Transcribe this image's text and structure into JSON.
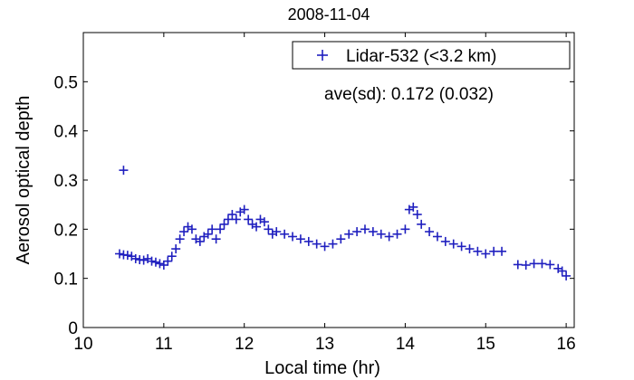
{
  "chart_data": {
    "type": "scatter",
    "title": "2008-11-04",
    "xlabel": "Local time (hr)",
    "ylabel": "Aerosol optical depth",
    "xlim": [
      10,
      16.1
    ],
    "ylim": [
      0,
      0.6
    ],
    "xticks": [
      "10",
      "11",
      "12",
      "13",
      "14",
      "15",
      "16"
    ],
    "yticks": [
      "0",
      "0.1",
      "0.2",
      "0.3",
      "0.4",
      "0.5"
    ],
    "legend_placement": "top-right",
    "marker": "+",
    "color": "#1f1fbf",
    "annotation": "ave(sd): 0.172 (0.032)",
    "series": [
      {
        "name": "Lidar-532 (<3.2 km)",
        "x": [
          10.5,
          10.45,
          10.5,
          10.55,
          10.6,
          10.65,
          10.7,
          10.75,
          10.8,
          10.85,
          10.9,
          10.95,
          11.0,
          11.05,
          11.1,
          11.15,
          11.2,
          11.25,
          11.3,
          11.35,
          11.4,
          11.45,
          11.5,
          11.55,
          11.6,
          11.65,
          11.7,
          11.75,
          11.8,
          11.85,
          11.9,
          11.95,
          12.0,
          12.05,
          12.1,
          12.15,
          12.2,
          12.25,
          12.3,
          12.35,
          12.4,
          12.5,
          12.6,
          12.7,
          12.8,
          12.9,
          13.0,
          13.1,
          13.2,
          13.3,
          13.4,
          13.5,
          13.6,
          13.7,
          13.8,
          13.9,
          14.0,
          14.05,
          14.1,
          14.15,
          14.2,
          14.3,
          14.4,
          14.5,
          14.6,
          14.7,
          14.8,
          14.9,
          15.0,
          15.1,
          15.2,
          15.4,
          15.5,
          15.6,
          15.7,
          15.8,
          15.9,
          15.95,
          16.0
        ],
        "y": [
          0.32,
          0.15,
          0.148,
          0.147,
          0.145,
          0.14,
          0.138,
          0.137,
          0.14,
          0.135,
          0.133,
          0.13,
          0.127,
          0.135,
          0.145,
          0.16,
          0.18,
          0.195,
          0.205,
          0.2,
          0.18,
          0.175,
          0.185,
          0.19,
          0.2,
          0.18,
          0.2,
          0.21,
          0.22,
          0.23,
          0.22,
          0.235,
          0.24,
          0.22,
          0.21,
          0.205,
          0.22,
          0.215,
          0.2,
          0.19,
          0.195,
          0.19,
          0.185,
          0.18,
          0.175,
          0.17,
          0.165,
          0.17,
          0.18,
          0.19,
          0.195,
          0.2,
          0.195,
          0.19,
          0.185,
          0.19,
          0.2,
          0.24,
          0.245,
          0.23,
          0.21,
          0.195,
          0.185,
          0.175,
          0.17,
          0.165,
          0.16,
          0.155,
          0.15,
          0.155,
          0.155,
          0.128,
          0.127,
          0.13,
          0.13,
          0.128,
          0.12,
          0.115,
          0.105
        ]
      }
    ]
  }
}
